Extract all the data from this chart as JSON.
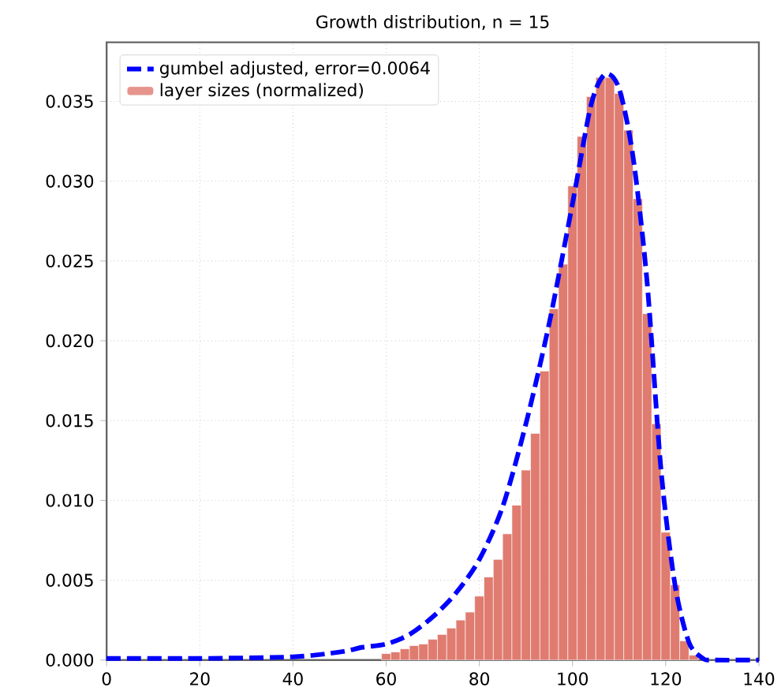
{
  "chart_data": {
    "type": "histogram",
    "title": "Growth distribution, n = 15",
    "xlim": [
      0,
      140
    ],
    "xticks": [
      0,
      20,
      40,
      60,
      80,
      100,
      120,
      140
    ],
    "ylim": [
      0,
      0.0387
    ],
    "yticks": [
      {
        "value": 0,
        "label": "0.000"
      },
      {
        "value": 0.005,
        "label": "0.005"
      },
      {
        "value": 0.01,
        "label": "0.010"
      },
      {
        "value": 0.015,
        "label": "0.015"
      },
      {
        "value": 0.02,
        "label": "0.020"
      },
      {
        "value": 0.025,
        "label": "0.025"
      },
      {
        "value": 0.03,
        "label": "0.030"
      },
      {
        "value": 0.035,
        "label": "0.035"
      }
    ],
    "grid": true,
    "legend": "top left",
    "series": [
      {
        "type": "line",
        "name": "gumbel adjusted, error=0.0064",
        "color": "#0000ff",
        "line_style": "dashed",
        "x": [
          0,
          20,
          40,
          50,
          55,
          60,
          65,
          70,
          75,
          80,
          85,
          90,
          95,
          100,
          104,
          107,
          110,
          113,
          116,
          119,
          122,
          125,
          128,
          130,
          140
        ],
        "values": [
          0.0001,
          0.0001,
          0.0002,
          0.0005,
          0.0008,
          0.001,
          0.0016,
          0.0027,
          0.0042,
          0.0063,
          0.0096,
          0.0148,
          0.0211,
          0.0286,
          0.0348,
          0.0367,
          0.0358,
          0.0315,
          0.0237,
          0.0119,
          0.0047,
          0.0011,
          0.0001,
          0.0,
          0.0
        ]
      },
      {
        "name": "layer sizes (normalized)",
        "color": "#e07b70",
        "bins": [
          59,
          61,
          63,
          65,
          67,
          69,
          71,
          73,
          75,
          77,
          79,
          81,
          83,
          85,
          87,
          89,
          91,
          93,
          95,
          97,
          99,
          101,
          103,
          105,
          107,
          109,
          111,
          113,
          115,
          117,
          119,
          121,
          123,
          125,
          127
        ],
        "values": [
          0.0004,
          0.0005,
          0.0007,
          0.0009,
          0.001,
          0.0013,
          0.0016,
          0.002,
          0.0025,
          0.003,
          0.004,
          0.0052,
          0.0063,
          0.0079,
          0.0097,
          0.0119,
          0.0142,
          0.0181,
          0.022,
          0.0248,
          0.0297,
          0.0328,
          0.0353,
          0.0365,
          0.0365,
          0.0355,
          0.0332,
          0.0289,
          0.0217,
          0.0148,
          0.008,
          0.0047,
          0.0012,
          0.0003
        ]
      }
    ]
  }
}
